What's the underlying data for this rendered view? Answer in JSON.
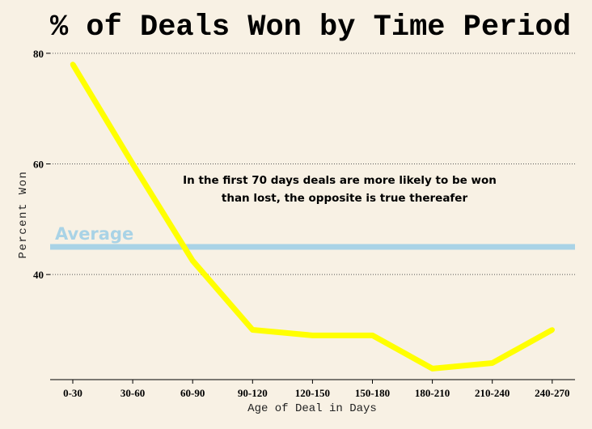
{
  "chart_data": {
    "type": "line",
    "title": "% of Deals Won by Time Period",
    "xlabel": "Age of Deal in Days",
    "ylabel": "Percent Won",
    "categories": [
      "0-30",
      "30-60",
      "60-90",
      "90-120",
      "120-150",
      "150-180",
      "180-210",
      "210-240",
      "240-270"
    ],
    "series": [
      {
        "values": [
          78,
          60,
          42.5,
          30,
          29,
          29,
          23,
          24,
          30
        ]
      }
    ],
    "ylim": [
      21,
      81
    ],
    "yticks": [
      40,
      60,
      80
    ],
    "y_tick_labels": [
      "40",
      "60",
      "80"
    ],
    "grid": "horizontal-dotted",
    "reference_line": {
      "label": "Average",
      "value": 45
    },
    "annotation": {
      "lines": [
        "In the first 70 days deals are more likely to be won",
        "than lost, the opposite is true thereafer"
      ]
    },
    "colors": {
      "background": "#f8f1e4",
      "line": "#ffff00",
      "average": "#a9d3e6",
      "grid": "#555555"
    }
  }
}
